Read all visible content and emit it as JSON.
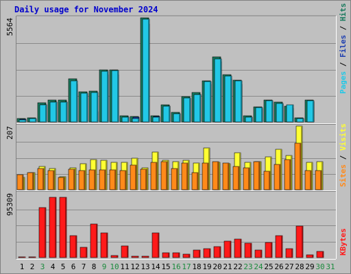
{
  "title": "Daily usage for November 2024",
  "colors": {
    "background": "#c0c0c0",
    "title": "#0000cc",
    "hits": "#1a7a5e",
    "files": "#1e3fb0",
    "pages": "#22c8e6",
    "visits": "#ffff33",
    "sites": "#ff8a1a",
    "kbytes": "#ff1a1a",
    "weekend": "#1a8a3c",
    "gridline": "#8a8a8a",
    "separator": "#ffffff"
  },
  "chart_data": [
    {
      "type": "bar",
      "id": "hits-files-pages",
      "categories": [
        "1",
        "2",
        "3",
        "4",
        "5",
        "6",
        "7",
        "8",
        "9",
        "10",
        "11",
        "12",
        "13",
        "14",
        "15",
        "16",
        "17",
        "18",
        "19",
        "20",
        "21",
        "22",
        "23",
        "24",
        "25",
        "26",
        "27",
        "28",
        "29",
        "30",
        "31"
      ],
      "weekend_days": [
        "3",
        "9",
        "10",
        "16",
        "17",
        "23",
        "24",
        "30",
        "31"
      ],
      "ymax_label": "5564",
      "ylim": [
        0,
        5564
      ],
      "right_label_parts": [
        {
          "text": "Pages",
          "color": "#22c8e6"
        },
        {
          "text": " / ",
          "color": "#000000"
        },
        {
          "text": "Files",
          "color": "#1e3fb0"
        },
        {
          "text": " / ",
          "color": "#000000"
        },
        {
          "text": "Hits",
          "color": "#1a7a5e"
        }
      ],
      "series": [
        {
          "name": "Hits",
          "color": "#1a7a5e",
          "values": [
            190,
            230,
            1020,
            1150,
            1160,
            2280,
            1600,
            1640,
            2750,
            2770,
            330,
            280,
            5540,
            330,
            910,
            510,
            1350,
            1570,
            2200,
            3450,
            2520,
            2220,
            330,
            800,
            1180,
            1060,
            830,
            230,
            1150,
            null,
            null
          ]
        },
        {
          "name": "Files",
          "color": "#1e3fb0",
          "values": [
            130,
            140,
            900,
            1050,
            1050,
            2000,
            1500,
            560,
            2500,
            2500,
            250,
            240,
            5200,
            300,
            850,
            450,
            1250,
            1450,
            2000,
            3200,
            2300,
            2000,
            260,
            700,
            1050,
            950,
            740,
            200,
            1050,
            null,
            null
          ]
        },
        {
          "name": "Pages",
          "color": "#22c8e6",
          "values": [
            120,
            180,
            910,
            1070,
            1060,
            2200,
            1520,
            1580,
            2680,
            2720,
            250,
            200,
            5450,
            270,
            850,
            450,
            1290,
            1460,
            2160,
            3360,
            2430,
            2170,
            240,
            760,
            1120,
            1000,
            920,
            180,
            1130,
            null,
            null
          ]
        }
      ]
    },
    {
      "type": "bar",
      "id": "visits-sites",
      "categories": [
        "1",
        "2",
        "3",
        "4",
        "5",
        "6",
        "7",
        "8",
        "9",
        "10",
        "11",
        "12",
        "13",
        "14",
        "15",
        "16",
        "17",
        "18",
        "19",
        "20",
        "21",
        "22",
        "23",
        "24",
        "25",
        "26",
        "27",
        "28",
        "29",
        "30",
        "31"
      ],
      "ymax_label": "207",
      "ylim": [
        0,
        207
      ],
      "right_label_parts": [
        {
          "text": "Sites",
          "color": "#ff8a1a"
        },
        {
          "text": " / ",
          "color": "#000000"
        },
        {
          "text": "Visits",
          "color": "#ffff33"
        }
      ],
      "series": [
        {
          "name": "Visits",
          "color": "#ffff33",
          "values": [
            40,
            55,
            75,
            70,
            42,
            72,
            85,
            98,
            95,
            90,
            88,
            102,
            72,
            122,
            95,
            92,
            95,
            86,
            136,
            90,
            85,
            120,
            90,
            92,
            106,
            132,
            112,
            207,
            90,
            92,
            null
          ]
        },
        {
          "name": "Sites",
          "color": "#ff8a1a",
          "values": [
            50,
            55,
            68,
            62,
            40,
            66,
            62,
            65,
            64,
            64,
            62,
            81,
            66,
            90,
            91,
            68,
            86,
            55,
            87,
            91,
            87,
            75,
            71,
            92,
            60,
            83,
            98,
            151,
            63,
            62,
            null
          ]
        }
      ]
    },
    {
      "type": "bar",
      "id": "kbytes",
      "categories": [
        "1",
        "2",
        "3",
        "4",
        "5",
        "6",
        "7",
        "8",
        "9",
        "10",
        "11",
        "12",
        "13",
        "14",
        "15",
        "16",
        "17",
        "18",
        "19",
        "20",
        "21",
        "22",
        "23",
        "24",
        "25",
        "26",
        "27",
        "28",
        "29",
        "30",
        "31"
      ],
      "ymax_label": "95309",
      "ylim": [
        0,
        95309
      ],
      "right_label_parts": [
        {
          "text": "KBytes",
          "color": "#ff1a1a"
        }
      ],
      "series": [
        {
          "name": "KBytes",
          "values": [
            500,
            500,
            74000,
            89000,
            89000,
            32000,
            15000,
            50000,
            36000,
            3000,
            17000,
            2500,
            2500,
            37000,
            7500,
            7500,
            5000,
            11000,
            13000,
            16000,
            24000,
            27000,
            21000,
            11000,
            22000,
            32000,
            13000,
            47000,
            4000,
            9000,
            null
          ]
        }
      ]
    }
  ]
}
